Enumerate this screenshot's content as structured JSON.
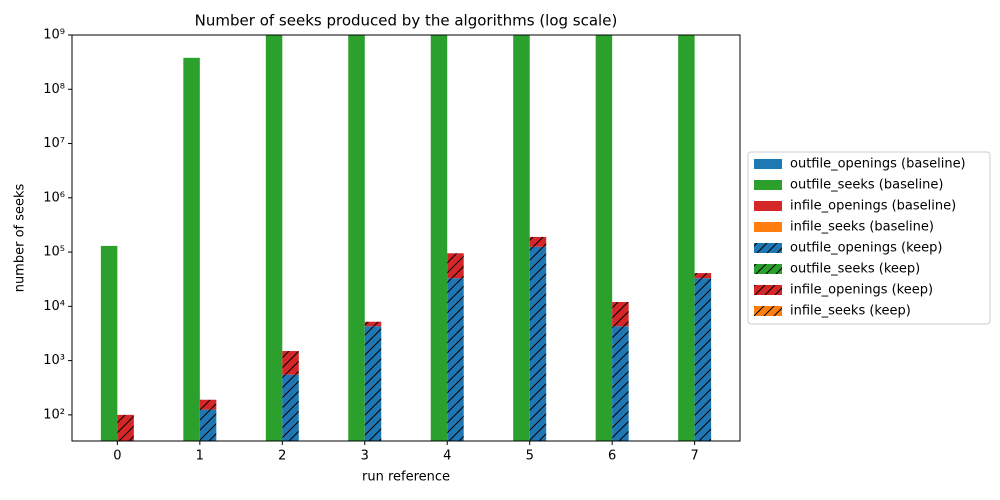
{
  "chart_data": {
    "type": "bar",
    "title": "Number of seeks produced by the algorithms (log scale)",
    "x_label": "run reference",
    "y_label": "number of seeks",
    "x": [
      0,
      1,
      2,
      3,
      4,
      5,
      6,
      7
    ],
    "xlim": [
      -0.55,
      7.55
    ],
    "xticks": [
      0,
      1,
      2,
      3,
      4,
      5,
      6,
      7
    ],
    "ylim": [
      33,
      1000000000
    ],
    "log_y": true,
    "yticks": [
      {
        "value": 100,
        "label": "10²"
      },
      {
        "value": 1000,
        "label": "10³"
      },
      {
        "value": 10000,
        "label": "10⁴"
      },
      {
        "value": 100000,
        "label": "10⁵"
      },
      {
        "value": 1000000,
        "label": "10⁶"
      },
      {
        "value": 10000000,
        "label": "10⁷"
      },
      {
        "value": 100000000,
        "label": "10⁸"
      },
      {
        "value": 1000000000,
        "label": "10⁹"
      }
    ],
    "stacked": true,
    "legend": "right",
    "groups": [
      {
        "hatch": false,
        "series": [
          {
            "name": "outfile_openings (baseline)",
            "color": "#1f77b4",
            "values": [
              0,
              0,
              0,
              0,
              0,
              0,
              0,
              0
            ]
          },
          {
            "name": "outfile_seeks (baseline)",
            "color": "#2ca02c",
            "values": [
              130000,
              380000000,
              2000000000,
              2000000000,
              2000000000,
              2000000000,
              2000000000,
              2000000000
            ]
          },
          {
            "name": "infile_openings (baseline)",
            "color": "#d62728",
            "values": [
              0,
              0,
              0,
              0,
              0,
              0,
              0,
              0
            ]
          },
          {
            "name": "infile_seeks (baseline)",
            "color": "#ff7f0e",
            "values": [
              0,
              0,
              0,
              0,
              0,
              0,
              0,
              0
            ]
          }
        ]
      },
      {
        "hatch": true,
        "series": [
          {
            "name": "outfile_openings (keep)",
            "color": "#1f77b4",
            "values": [
              0,
              125,
              550,
              4300,
              33000,
              125000,
              4300,
              33000
            ]
          },
          {
            "name": "outfile_seeks (keep)",
            "color": "#2ca02c",
            "values": [
              0,
              0,
              0,
              0,
              0,
              0,
              0,
              0
            ]
          },
          {
            "name": "infile_openings (keep)",
            "color": "#d62728",
            "values": [
              100,
              65,
              950,
              900,
              62000,
              65000,
              7700,
              8000
            ]
          },
          {
            "name": "infile_seeks (keep)",
            "color": "#ff7f0e",
            "values": [
              0,
              0,
              0,
              0,
              0,
              0,
              0,
              0
            ]
          }
        ]
      }
    ]
  }
}
